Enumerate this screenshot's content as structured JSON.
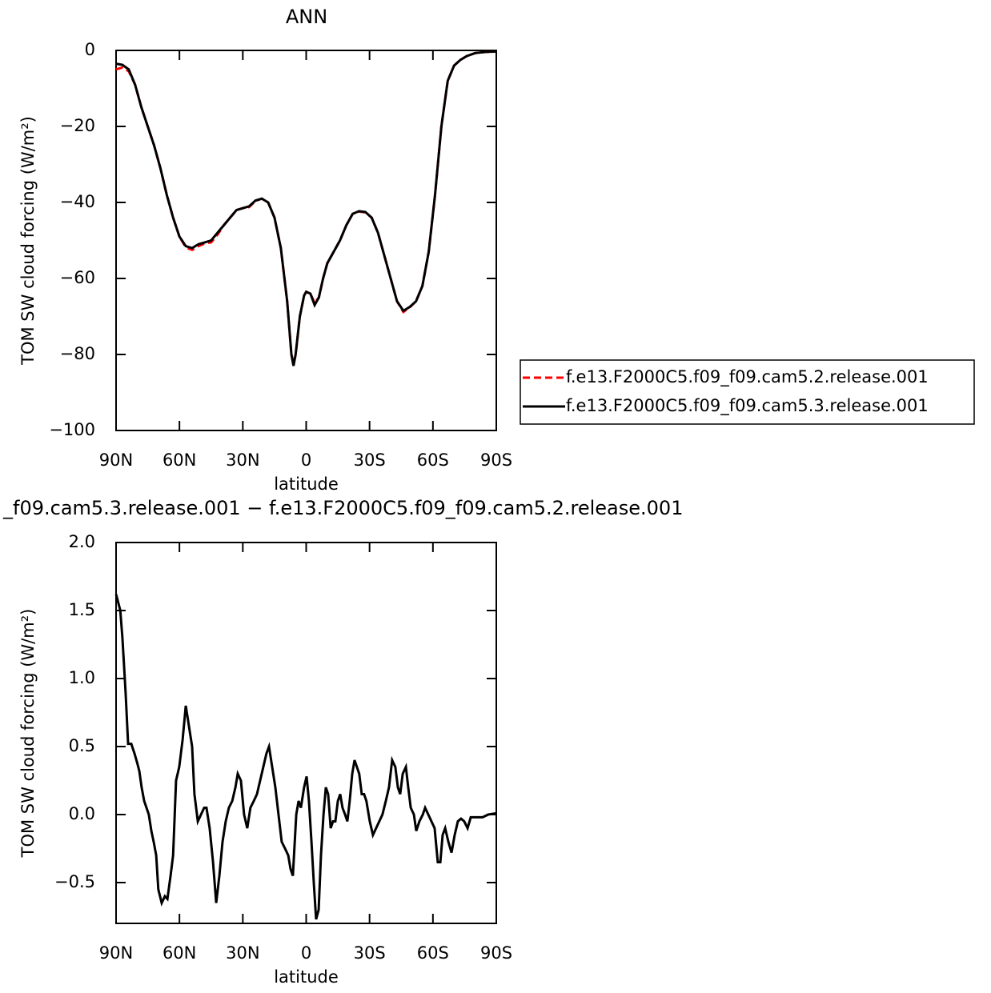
{
  "chart_data": [
    {
      "type": "line",
      "title": "ANN",
      "xlabel": "latitude",
      "ylabel": "TOM SW cloud forcing (W/m²)",
      "xlim": [
        90,
        -90
      ],
      "xticks": [
        {
          "value": 90,
          "label": "90N"
        },
        {
          "value": 60,
          "label": "60N"
        },
        {
          "value": 30,
          "label": "30N"
        },
        0,
        {
          "value": -30,
          "label": "30S"
        },
        {
          "value": -60,
          "label": "60S"
        },
        {
          "value": -90,
          "label": "90S"
        }
      ],
      "ylim": [
        -100,
        0
      ],
      "yticks": [
        {
          "value": -100,
          "label": "−100"
        },
        {
          "value": -80,
          "label": "−80"
        },
        {
          "value": -60,
          "label": "−60"
        },
        {
          "value": -40,
          "label": "−40"
        },
        {
          "value": -20,
          "label": "−20"
        },
        0
      ],
      "legend": "right",
      "x": [
        90,
        87,
        84,
        81,
        78,
        75,
        72,
        69,
        66,
        63,
        60,
        57,
        54,
        51,
        48,
        45,
        42,
        39,
        36,
        33,
        30,
        27,
        24,
        21,
        18,
        15,
        12,
        9,
        7,
        6,
        5,
        3,
        1,
        0,
        -2,
        -4,
        -6,
        -8,
        -10,
        -13,
        -16,
        -19,
        -22,
        -25,
        -28,
        -31,
        -34,
        -37,
        -40,
        -43,
        -46,
        -49,
        -52,
        -55,
        -58,
        -61,
        -64,
        -67,
        -70,
        -73,
        -76,
        -80,
        -85,
        -90
      ],
      "series": [
        {
          "name": "f.e13.F2000C5.f09_f09.cam5.2.release.001",
          "color": "#ff0000",
          "dashed": true,
          "values": [
            -5,
            -4.5,
            -5.5,
            -9,
            -15,
            -20,
            -25,
            -31,
            -38,
            -44,
            -49,
            -51.8,
            -52.5,
            -51.5,
            -50.8,
            -50.5,
            -48.5,
            -46,
            -44,
            -42,
            -41.5,
            -41.2,
            -39.6,
            -39,
            -40,
            -44,
            -52,
            -66,
            -80,
            -82.5,
            -80,
            -70,
            -64.5,
            -63.5,
            -64,
            -66.5,
            -65,
            -60,
            -56,
            -53,
            -50,
            -46,
            -43,
            -42.4,
            -42.6,
            -44,
            -48,
            -54,
            -60,
            -66,
            -68.8,
            -67.6,
            -66,
            -62,
            -53,
            -38,
            -20,
            -8,
            -4,
            -2.5,
            -1.5,
            -0.7,
            -0.4,
            -0.3
          ]
        },
        {
          "name": "f.e13.F2000C5.f09_f09.cam5.3.release.001",
          "color": "#000000",
          "dashed": false,
          "values": [
            -3.5,
            -3.8,
            -5,
            -9,
            -15,
            -20,
            -25,
            -31,
            -38,
            -44,
            -49,
            -51.5,
            -52,
            -51,
            -50.5,
            -50,
            -48,
            -46,
            -44,
            -42,
            -41.5,
            -41,
            -39.5,
            -39,
            -40,
            -44,
            -52,
            -66,
            -80,
            -83,
            -80,
            -70,
            -64.5,
            -63.5,
            -64,
            -67,
            -65,
            -60,
            -56,
            -53,
            -50,
            -46,
            -43,
            -42.3,
            -42.5,
            -44,
            -48,
            -54,
            -60,
            -66,
            -68.5,
            -67.5,
            -66,
            -62,
            -53,
            -38,
            -20,
            -8,
            -4,
            -2.5,
            -1.5,
            -0.7,
            -0.4,
            -0.3
          ]
        }
      ]
    },
    {
      "type": "line",
      "title": "_f09.cam5.3.release.001 − f.e13.F2000C5.f09_f09.cam5.2.release.001",
      "xlabel": "latitude",
      "ylabel": "TOM SW cloud forcing (W/m²)",
      "xlim": [
        90,
        -90
      ],
      "xticks": [
        {
          "value": 90,
          "label": "90N"
        },
        {
          "value": 60,
          "label": "60N"
        },
        {
          "value": 30,
          "label": "30N"
        },
        0,
        {
          "value": -30,
          "label": "30S"
        },
        {
          "value": -60,
          "label": "60S"
        },
        {
          "value": -90,
          "label": "90S"
        }
      ],
      "ylim": [
        -0.8,
        2.0
      ],
      "yticks": [
        {
          "value": -0.5,
          "label": "−0.5"
        },
        {
          "value": 0,
          "label": "0.0"
        },
        0.5,
        {
          "value": 1,
          "label": "1.0"
        },
        1.5,
        {
          "value": 2,
          "label": "2.0"
        }
      ],
      "x": [
        90,
        88,
        87,
        85.5,
        84.3,
        82.8,
        81.3,
        80,
        79,
        77.9,
        76.7,
        75.6,
        74.5,
        73.3,
        72.2,
        71,
        70,
        68.4,
        66.9,
        65.7,
        64.2,
        63,
        61.6,
        60.1,
        58.5,
        57,
        55.5,
        54,
        52.9,
        51.3,
        49.8,
        48.3,
        47.2,
        45.7,
        44.1,
        42.6,
        41.1,
        39.6,
        38.1,
        36.6,
        35,
        33.5,
        32.4,
        30.9,
        29.4,
        27.9,
        26.4,
        24.8,
        23.3,
        21.8,
        20.3,
        18.8,
        17.6,
        16.1,
        14.6,
        13.1,
        11.6,
        10,
        8.5,
        7.4,
        6.3,
        4.7,
        3.6,
        2.5,
        1,
        -0.2,
        -1.3,
        -2.5,
        -3.6,
        -4.7,
        -5.9,
        -7,
        -8.2,
        -9.3,
        -10.4,
        -11.6,
        -12.7,
        -13.8,
        -15,
        -16.1,
        -17.2,
        -18.4,
        -19.5,
        -20.6,
        -21.8,
        -22.9,
        -24,
        -25.1,
        -26.3,
        -27.4,
        -28.5,
        -30.1,
        -31.6,
        -33.1,
        -34.6,
        -36.1,
        -37.7,
        -39.2,
        -40.7,
        -42.2,
        -43.4,
        -44.5,
        -45.7,
        -47.2,
        -48.3,
        -49.5,
        -51,
        -52.1,
        -53.6,
        -55.2,
        -56.3,
        -57.8,
        -59.3,
        -60.8,
        -62.3,
        -63.5,
        -64.6,
        -65.8,
        -67.3,
        -68.8,
        -70.3,
        -71.8,
        -73.3,
        -74.8,
        -76.4,
        -77.9,
        -80.5,
        -83.5,
        -86.2,
        -90
      ],
      "series": [
        {
          "name": null,
          "color": "#000000",
          "dashed": false,
          "values": [
            1.62,
            1.5,
            1.3,
            0.9,
            0.52,
            0.52,
            0.45,
            0.38,
            0.32,
            0.2,
            0.1,
            0.05,
            0,
            -0.12,
            -0.2,
            -0.3,
            -0.55,
            -0.65,
            -0.6,
            -0.62,
            -0.45,
            -0.3,
            0.25,
            0.35,
            0.55,
            0.8,
            0.65,
            0.5,
            0.15,
            -0.05,
            0,
            0.05,
            0.05,
            -0.1,
            -0.35,
            -0.65,
            -0.45,
            -0.2,
            -0.05,
            0.05,
            0.1,
            0.2,
            0.3,
            0.25,
            0,
            -0.1,
            0.05,
            0.1,
            0.15,
            0.25,
            0.35,
            0.45,
            0.5,
            0.35,
            0.2,
            0,
            -0.2,
            -0.25,
            -0.3,
            -0.4,
            -0.45,
            0,
            0.1,
            0.05,
            0.2,
            0.28,
            0.1,
            -0.2,
            -0.5,
            -0.77,
            -0.7,
            -0.3,
            0,
            0.2,
            0.15,
            -0.1,
            -0.05,
            -0.05,
            0.1,
            0.15,
            0.05,
            0,
            -0.05,
            0.1,
            0.3,
            0.4,
            0.35,
            0.3,
            0.15,
            0.15,
            0.1,
            -0.05,
            -0.15,
            -0.1,
            -0.05,
            0,
            0.1,
            0.2,
            0.4,
            0.35,
            0.2,
            0.15,
            0.3,
            0.35,
            0.2,
            0.05,
            0,
            -0.12,
            -0.05,
            0,
            0.05,
            0,
            -0.05,
            -0.1,
            -0.35,
            -0.35,
            -0.15,
            -0.1,
            -0.2,
            -0.28,
            -0.15,
            -0.05,
            -0.03,
            -0.05,
            -0.1,
            -0.02,
            -0.02,
            -0.02,
            0,
            0.01
          ]
        }
      ]
    }
  ]
}
